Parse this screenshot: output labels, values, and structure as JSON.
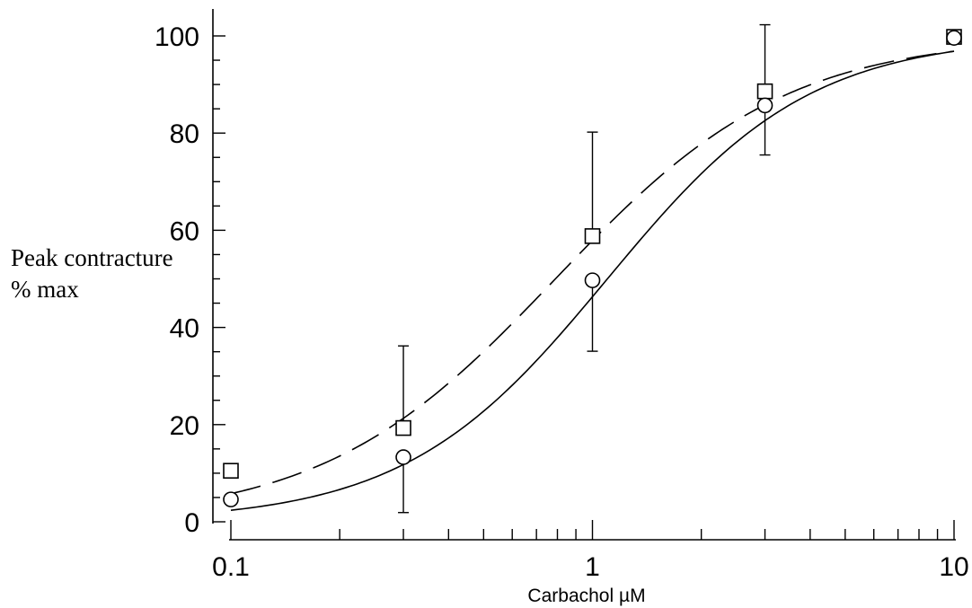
{
  "chart_data": {
    "type": "scatter",
    "title": "",
    "xlabel": "Carbachol µM",
    "ylabel_lines": [
      "Peak contracture",
      "% max"
    ],
    "xscale": "log",
    "xlim": [
      0.1,
      10
    ],
    "ylim": [
      0,
      100
    ],
    "xticks": [
      0.1,
      1,
      10
    ],
    "xtick_labels": [
      "0.1",
      "1",
      "10"
    ],
    "yticks": [
      0,
      20,
      40,
      60,
      80,
      100
    ],
    "ytick_labels": [
      "0",
      "20",
      "40",
      "60",
      "80",
      "100"
    ],
    "grid": false,
    "legend": "none",
    "series": [
      {
        "marker": "square",
        "curve": "dashed",
        "x": [
          0.1,
          0.3,
          1,
          3,
          10
        ],
        "y": [
          10.5,
          19.3,
          58.8,
          88.6,
          99.8
        ],
        "error_upper": [
          null,
          36.2,
          80.2,
          102.3,
          null
        ],
        "error_lower": [
          null,
          null,
          null,
          null,
          null
        ],
        "fit": {
          "model": "hill",
          "top": 100,
          "ec50": 0.79,
          "hill": 1.35
        }
      },
      {
        "marker": "circle",
        "curve": "solid",
        "x": [
          0.1,
          0.3,
          1,
          3,
          10
        ],
        "y": [
          4.6,
          13.3,
          49.7,
          85.7,
          99.6
        ],
        "error_upper": [
          null,
          null,
          null,
          null,
          null
        ],
        "error_lower": [
          null,
          1.9,
          35.1,
          75.5,
          null
        ],
        "fit": {
          "model": "hill",
          "top": 100,
          "ec50": 1.1,
          "hill": 1.55
        }
      }
    ]
  }
}
